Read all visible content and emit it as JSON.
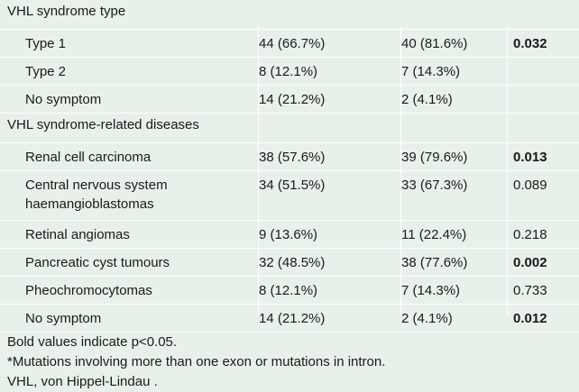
{
  "sections": [
    {
      "heading": "VHL syndrome type",
      "rows": [
        {
          "label": "Type 1",
          "a": "44 (66.7%)",
          "b": "40 (81.6%)",
          "p": "0.032",
          "bold": true
        },
        {
          "label": "Type 2",
          "a": "8 (12.1%)",
          "b": "7 (14.3%)",
          "p": "",
          "bold": false
        },
        {
          "label": "No symptom",
          "a": "14 (21.2%)",
          "b": "2 (4.1%)",
          "p": "",
          "bold": false
        }
      ]
    },
    {
      "heading": "VHL syndrome-related diseases",
      "rows": [
        {
          "label": "Renal cell carcinoma",
          "a": "38 (57.6%)",
          "b": "39 (79.6%)",
          "p": "0.013",
          "bold": true
        },
        {
          "label": "Central nervous system haemangioblastomas",
          "a": "34 (51.5%)",
          "b": "33 (67.3%)",
          "p": "0.089",
          "bold": false
        },
        {
          "label": "Retinal angiomas",
          "a": "9 (13.6%)",
          "b": "11 (22.4%)",
          "p": "0.218",
          "bold": false
        },
        {
          "label": "Pancreatic cyst tumours",
          "a": "32 (48.5%)",
          "b": "38 (77.6%)",
          "p": "0.002",
          "bold": true
        },
        {
          "label": "Pheochromocytomas",
          "a": "8 (12.1%)",
          "b": "7 (14.3%)",
          "p": "0.733",
          "bold": false
        },
        {
          "label": "No symptom",
          "a": "14 (21.2%)",
          "b": "2 (4.1%)",
          "p": "0.012",
          "bold": true
        }
      ]
    }
  ],
  "footnotes": [
    "Bold values indicate p<0.05.",
    "*Mutations involving more than one exon or mutations in intron.",
    "VHL, von Hippel-Lindau ."
  ],
  "colors": {
    "background": "#e8f0ea",
    "rule": "#ffffff",
    "text": "#1a1a1a"
  }
}
